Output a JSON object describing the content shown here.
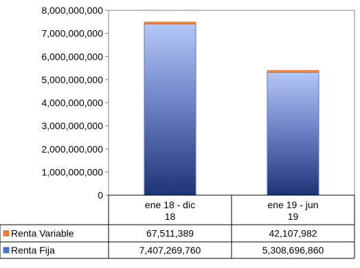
{
  "chart_data": {
    "type": "bar",
    "stacked": true,
    "categories": [
      "ene 18 - dic 18",
      "ene 19 - jun 19"
    ],
    "category_lines": [
      [
        "ene 18 - dic",
        "18"
      ],
      [
        "ene 19 - jun",
        "19"
      ]
    ],
    "series": [
      {
        "name": "Renta Variable",
        "values": [
          67511389,
          42107982
        ],
        "value_labels": [
          "67,511,389",
          "42,107,982"
        ],
        "color": "#ED7D31"
      },
      {
        "name": "Renta Fija",
        "values": [
          7407269760,
          5308696860
        ],
        "value_labels": [
          "7,407,269,760",
          "5,308,696,860"
        ],
        "color": "#4472C4"
      }
    ],
    "ylim": [
      0,
      8000000000
    ],
    "yticks": [
      0,
      1000000000,
      2000000000,
      3000000000,
      4000000000,
      5000000000,
      6000000000,
      7000000000,
      8000000000
    ],
    "ytick_labels": [
      "0",
      "1,000,000,000",
      "2,000,000,000",
      "3,000,000,000",
      "4,000,000,000",
      "5,000,000,000",
      "6,000,000,000",
      "7,000,000,000",
      "8,000,000,000"
    ],
    "grid": false,
    "legend": "data-table"
  }
}
